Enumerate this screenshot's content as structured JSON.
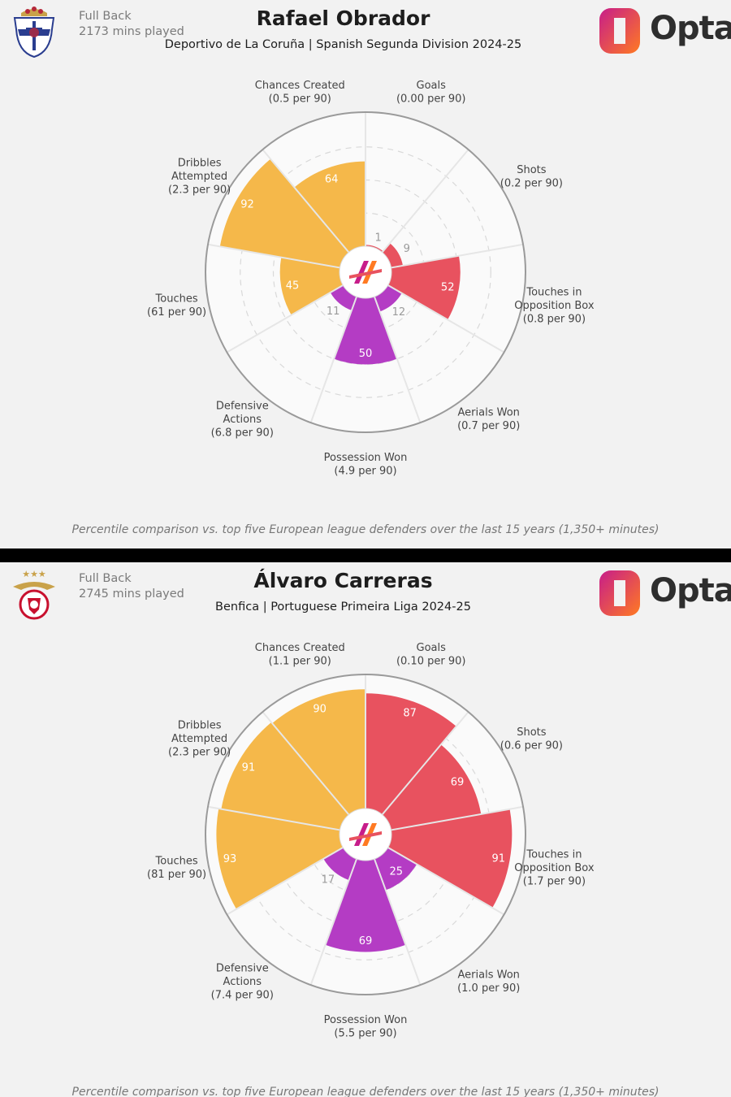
{
  "footnote": "Percentile comparison vs. top five European league defenders over the last 15 years (1,350+ minutes)",
  "brand": {
    "name": "Opta",
    "accent": "#ff7a22",
    "magenta": "#c71d8a"
  },
  "colors": {
    "attacking": "#e8525f",
    "possession": "#f5b84a",
    "defending": "#b43cc4",
    "gridline": "#d9d9d9",
    "ring": "#9a9a9a",
    "disc": "#fafafa",
    "label_in": "#ffffff",
    "label_out": "#9a9a9a"
  },
  "chart_data": [
    {
      "type": "radar",
      "position": "Full Back",
      "minutes": "2173 mins played",
      "player": "Rafael Obrador",
      "subtitle": "Deportivo de La Coruña | Spanish Segunda Division 2024-25",
      "rlim": [
        0,
        100
      ],
      "metrics": [
        {
          "name": "Goals",
          "per90": "(0.00 per 90)",
          "percentile": 1,
          "group": "attacking"
        },
        {
          "name": "Shots",
          "per90": "(0.2 per 90)",
          "percentile": 9,
          "group": "attacking"
        },
        {
          "name": "Touches in\nOpposition Box",
          "per90": "(0.8 per 90)",
          "percentile": 52,
          "group": "attacking"
        },
        {
          "name": "Aerials Won",
          "per90": "(0.7 per 90)",
          "percentile": 12,
          "group": "defending"
        },
        {
          "name": "Possession Won",
          "per90": "(4.9 per 90)",
          "percentile": 50,
          "group": "defending"
        },
        {
          "name": "Defensive\nActions",
          "per90": "(6.8 per 90)",
          "percentile": 11,
          "group": "defending"
        },
        {
          "name": "Touches",
          "per90": "(61 per 90)",
          "percentile": 45,
          "group": "possession"
        },
        {
          "name": "Dribbles\nAttempted",
          "per90": "(2.3 per 90)",
          "percentile": 92,
          "group": "possession"
        },
        {
          "name": "Chances Created",
          "per90": "(0.5 per 90)",
          "percentile": 64,
          "group": "possession"
        }
      ]
    },
    {
      "type": "radar",
      "position": "Full Back",
      "minutes": "2745 mins played",
      "player": "Álvaro Carreras",
      "subtitle": "Benfica | Portuguese Primeira Liga 2024-25",
      "rlim": [
        0,
        100
      ],
      "metrics": [
        {
          "name": "Goals",
          "per90": "(0.10 per 90)",
          "percentile": 87,
          "group": "attacking"
        },
        {
          "name": "Shots",
          "per90": "(0.6 per 90)",
          "percentile": 69,
          "group": "attacking"
        },
        {
          "name": "Touches in\nOpposition Box",
          "per90": "(1.7 per 90)",
          "percentile": 91,
          "group": "attacking"
        },
        {
          "name": "Aerials Won",
          "per90": "(1.0 per 90)",
          "percentile": 25,
          "group": "defending"
        },
        {
          "name": "Possession Won",
          "per90": "(5.5 per 90)",
          "percentile": 69,
          "group": "defending"
        },
        {
          "name": "Defensive\nActions",
          "per90": "(7.4 per 90)",
          "percentile": 17,
          "group": "defending"
        },
        {
          "name": "Touches",
          "per90": "(81 per 90)",
          "percentile": 93,
          "group": "possession"
        },
        {
          "name": "Dribbles\nAttempted",
          "per90": "(2.3 per 90)",
          "percentile": 91,
          "group": "possession"
        },
        {
          "name": "Chances Created",
          "per90": "(1.1 per 90)",
          "percentile": 90,
          "group": "possession"
        }
      ]
    }
  ]
}
